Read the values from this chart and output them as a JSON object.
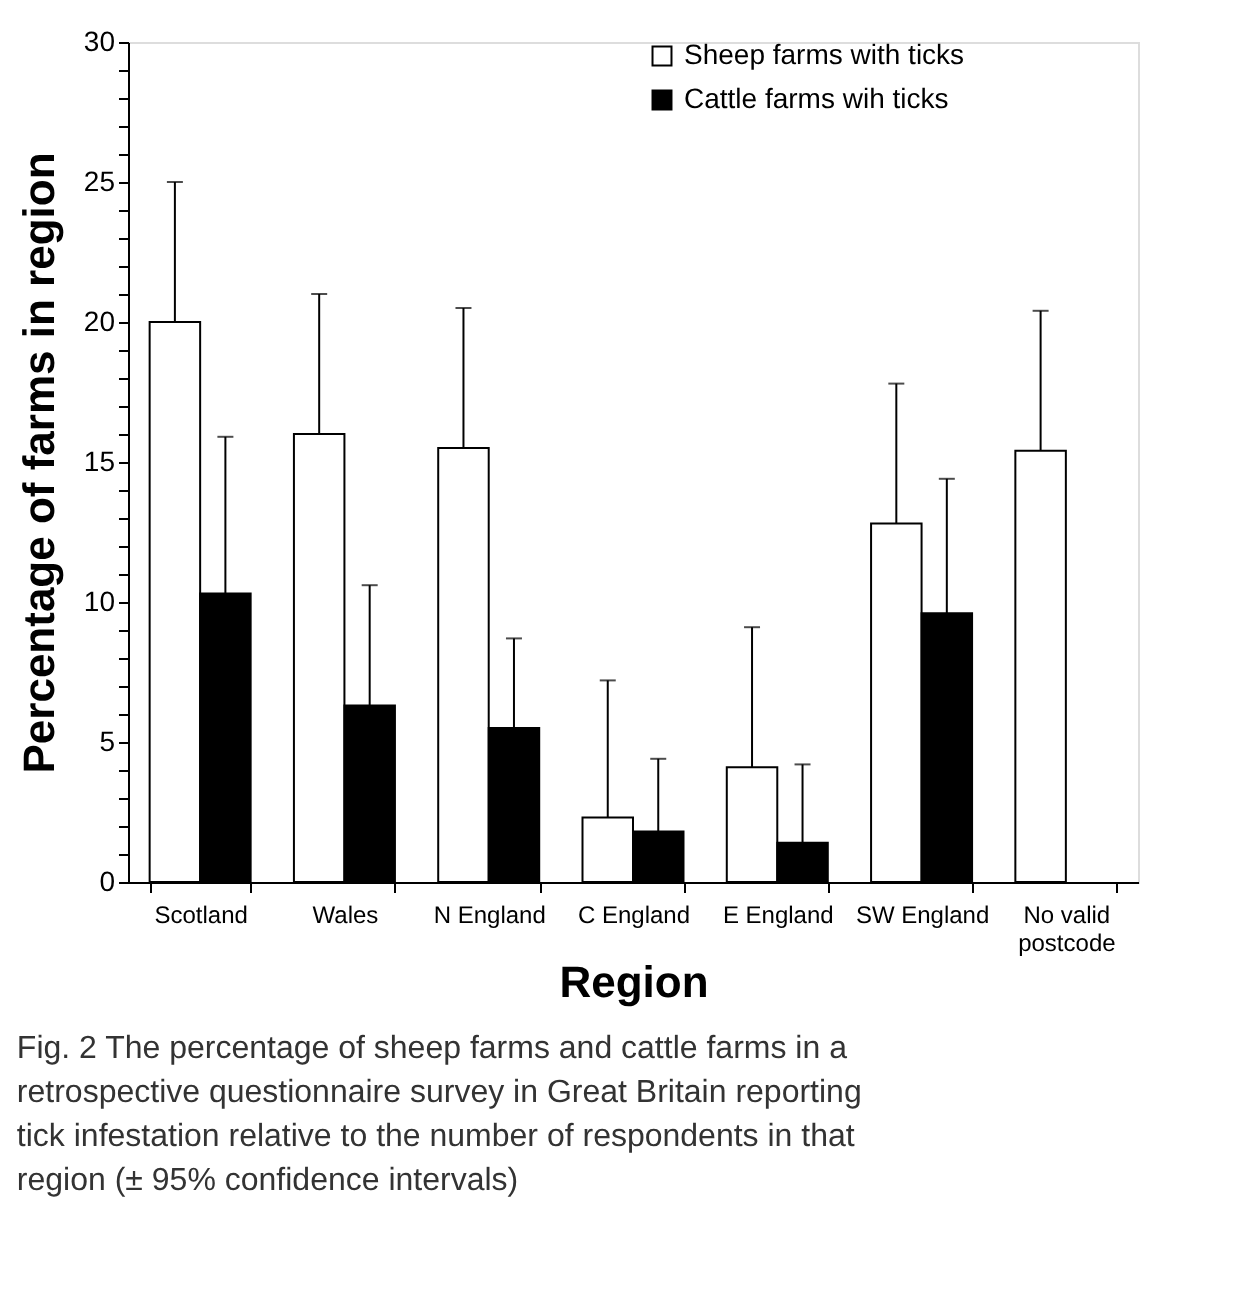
{
  "chart_data": {
    "type": "bar",
    "xlabel": "Region",
    "ylabel": "Percentage of farms in region",
    "categories": [
      "Scotland",
      "Wales",
      "N England",
      "C England",
      "E England",
      "SW England",
      "No valid postcode"
    ],
    "series": [
      {
        "name": "Sheep farms with ticks",
        "color": "#ffffff",
        "values": [
          20,
          16,
          15.5,
          2.3,
          4.1,
          12.8,
          15.4
        ],
        "errors": [
          [
            20,
            25
          ],
          [
            16,
            21
          ],
          [
            15.5,
            20.5
          ],
          [
            2.3,
            7.2
          ],
          [
            4.1,
            9.1
          ],
          [
            12.8,
            17.8
          ],
          [
            15.4,
            20.4
          ]
        ]
      },
      {
        "name": "Cattle farms wih ticks",
        "color": "#000000",
        "values": [
          10.3,
          6.3,
          5.5,
          1.8,
          1.4,
          9.6,
          null
        ],
        "errors": [
          [
            10.3,
            15.9
          ],
          [
            6.3,
            10.6
          ],
          [
            5.5,
            8.7
          ],
          [
            1.8,
            4.4
          ],
          [
            1.4,
            4.2
          ],
          [
            9.6,
            14.4
          ],
          null
        ]
      }
    ],
    "ylim": [
      0,
      30
    ],
    "yticks": [
      0,
      {
        "value": 1,
        "label": null
      },
      {
        "value": 2,
        "label": null
      },
      {
        "value": 3,
        "label": null
      },
      {
        "value": 4,
        "label": null
      },
      5,
      {
        "value": 6,
        "label": null
      },
      {
        "value": 7,
        "label": null
      },
      {
        "value": 8,
        "label": null
      },
      {
        "value": 9,
        "label": null
      },
      10,
      {
        "value": 11,
        "label": null
      },
      {
        "value": 12,
        "label": null
      },
      {
        "value": 13,
        "label": null
      },
      {
        "value": 14,
        "label": null
      },
      15,
      {
        "value": 16,
        "label": null
      },
      {
        "value": 17,
        "label": null
      },
      {
        "value": 18,
        "label": null
      },
      {
        "value": 19,
        "label": null
      },
      20,
      {
        "value": 21,
        "label": null
      },
      {
        "value": 22,
        "label": null
      },
      {
        "value": 23,
        "label": null
      },
      {
        "value": 24,
        "label": null
      },
      25,
      {
        "value": 26,
        "label": null
      },
      {
        "value": 27,
        "label": null
      },
      {
        "value": 28,
        "label": null
      },
      {
        "value": 29,
        "label": null
      },
      30
    ],
    "grid": false,
    "legend": "top",
    "annotations": [
      "Fig. 2  The percentage of sheep farms and cattle farms in a retrospective questionnaire survey in Great Britain reporting tick infestation relative to the number of respondents in that region (± 95% confidence intervals)"
    ]
  }
}
